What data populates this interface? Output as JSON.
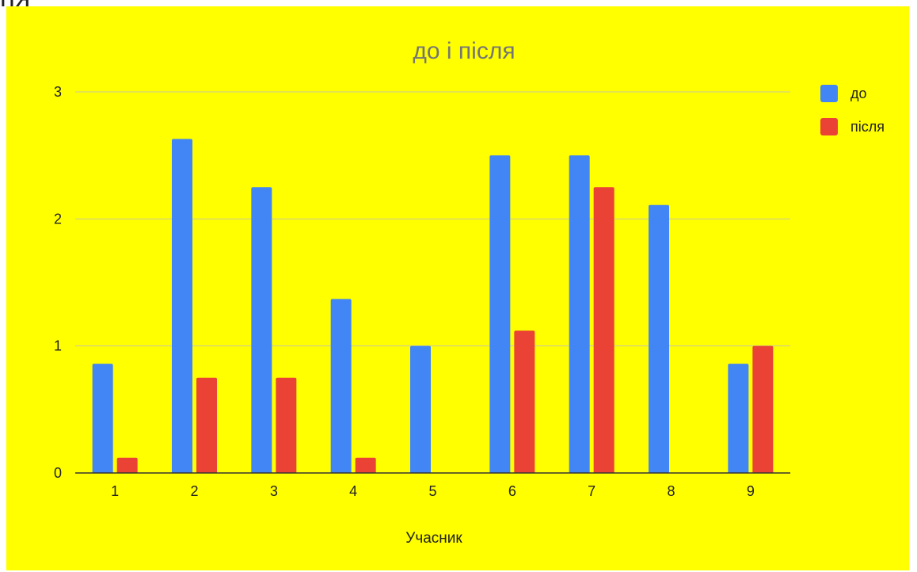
{
  "clipped_header_text": "ня",
  "chart_data": {
    "type": "bar",
    "title": "до і після",
    "xlabel": "Учасник",
    "ylabel": "",
    "categories": [
      "1",
      "2",
      "3",
      "4",
      "5",
      "6",
      "7",
      "8",
      "9"
    ],
    "series": [
      {
        "name": "до",
        "color": "#4285f4",
        "values": [
          0.86,
          2.63,
          2.25,
          1.37,
          1.0,
          2.5,
          2.5,
          2.11,
          0.86
        ]
      },
      {
        "name": "після",
        "color": "#ea4335",
        "values": [
          0.12,
          0.75,
          0.75,
          0.12,
          0,
          1.12,
          2.25,
          0,
          1.0
        ]
      }
    ],
    "ylim": [
      0,
      3
    ],
    "yticks": [
      "0",
      "1",
      "2",
      "3"
    ],
    "grid": true,
    "legend_position": "right",
    "background": "#ffff00"
  }
}
